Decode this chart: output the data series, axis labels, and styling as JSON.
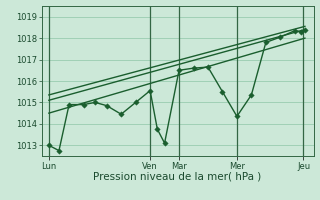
{
  "xlabel": "Pression niveau de la mer( hPa )",
  "bg_color": "#cce8d8",
  "plot_bg_color": "#cce8d8",
  "grid_color": "#99ccb0",
  "line_color": "#1a5e2e",
  "ylim": [
    1012.5,
    1019.5
  ],
  "yticks": [
    1013,
    1014,
    1015,
    1016,
    1017,
    1018,
    1019
  ],
  "day_labels": [
    "Lun",
    "Ven",
    "Mar",
    "Mer",
    "Jeu"
  ],
  "day_positions": [
    0.0,
    3.5,
    4.5,
    6.5,
    8.8
  ],
  "vline_positions": [
    0.0,
    3.5,
    4.5,
    6.5,
    8.8
  ],
  "main_x": [
    0.0,
    0.35,
    0.7,
    1.2,
    1.6,
    2.0,
    2.5,
    3.0,
    3.5,
    3.75,
    4.0,
    4.5,
    5.0,
    5.5,
    6.0,
    6.5,
    7.0,
    7.5,
    8.0,
    8.5,
    8.7,
    8.85
  ],
  "main_y": [
    1013.0,
    1012.75,
    1014.9,
    1014.9,
    1015.0,
    1014.85,
    1014.45,
    1015.0,
    1015.55,
    1013.75,
    1013.1,
    1016.5,
    1016.6,
    1016.65,
    1015.5,
    1014.35,
    1015.35,
    1017.8,
    1018.05,
    1018.35,
    1018.3,
    1018.4
  ],
  "trend1_x": [
    0.0,
    8.85
  ],
  "trend1_y": [
    1014.5,
    1018.0
  ],
  "trend2_x": [
    0.0,
    8.85
  ],
  "trend2_y": [
    1015.1,
    1018.4
  ],
  "trend3_x": [
    0.0,
    8.85
  ],
  "trend3_y": [
    1015.35,
    1018.55
  ],
  "marker_size": 2.8,
  "line_width": 1.0,
  "xlabel_fontsize": 7.5,
  "tick_fontsize": 6.0,
  "vline_color": "#336644",
  "vline_lw": 0.9,
  "xlim": [
    -0.25,
    9.15
  ]
}
